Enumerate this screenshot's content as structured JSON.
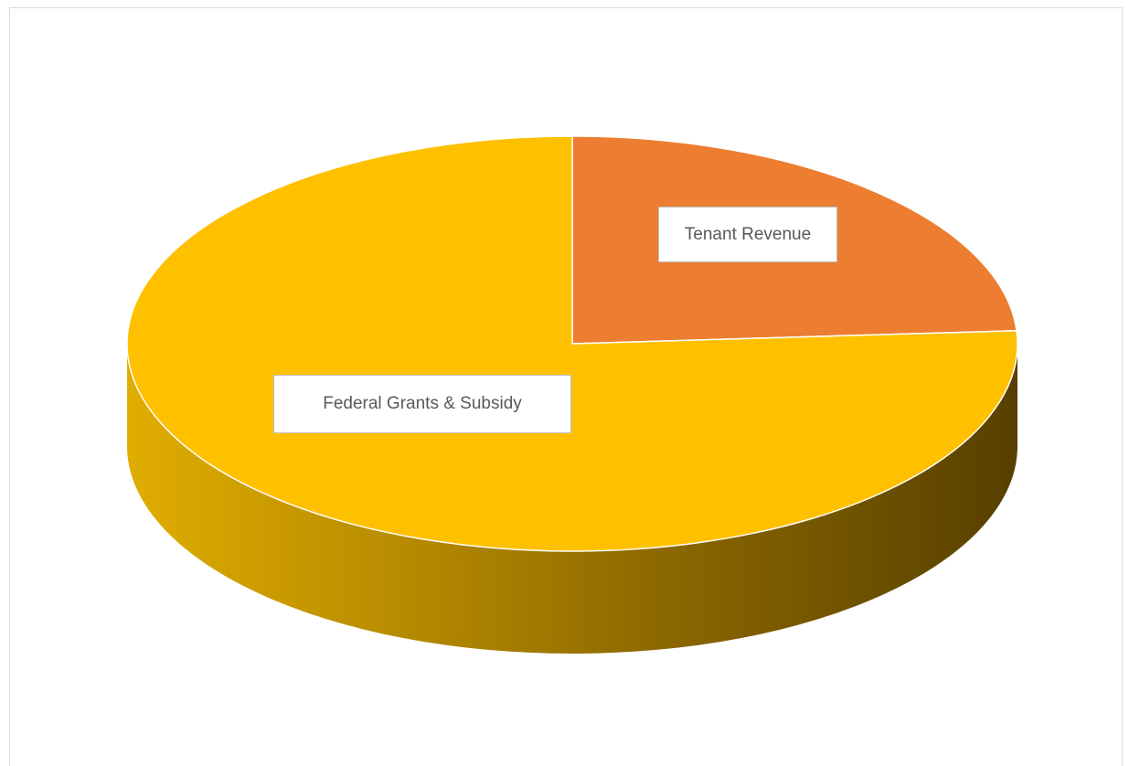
{
  "chart_data": {
    "type": "pie",
    "style": "3d",
    "title": "",
    "categories": [
      "Tenant Revenue",
      "Federal Grants & Subsidy"
    ],
    "values": [
      24,
      76
    ],
    "unit": "%",
    "colors": [
      "#ED7D31",
      "#FFC000"
    ],
    "legend": "none",
    "data_labels": [
      "Tenant Revenue",
      "Federal Grants & Subsidy"
    ]
  }
}
